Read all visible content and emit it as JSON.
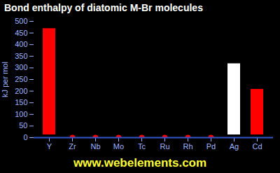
{
  "chart_data": {
    "type": "bar",
    "title": "Bond enthalpy of diatomic M-Br molecules",
    "caption": "www.webelements.com",
    "y_label": "kJ per mol",
    "categories": [
      "Y",
      "Zr",
      "Nb",
      "Mo",
      "Tc",
      "Ru",
      "Rh",
      "Pd",
      "Ag",
      "Cd"
    ],
    "values": [
      481,
      0,
      0,
      0,
      0,
      0,
      0,
      0,
      330,
      220
    ],
    "colors": [
      "#ff0000",
      "#ff0000",
      "#ff0000",
      "#ff0000",
      "#ff0000",
      "#ff0000",
      "#ff0000",
      "#ff0000",
      "#ffffff",
      "#ff0000"
    ],
    "ylim": [
      0,
      500
    ],
    "yticks": [
      0,
      50,
      100,
      150,
      200,
      250,
      300,
      350,
      400,
      450,
      500
    ],
    "grid": false
  }
}
